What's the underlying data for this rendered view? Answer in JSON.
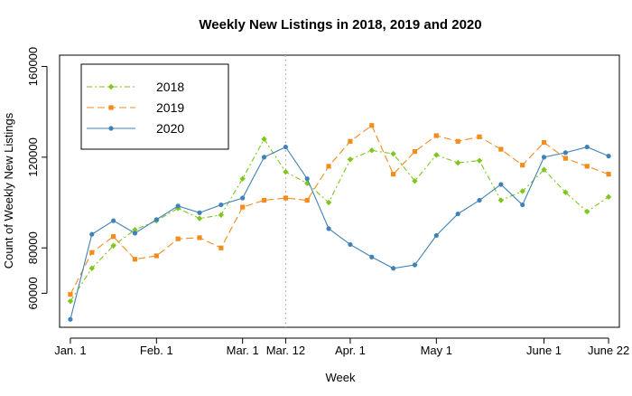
{
  "chart_data": {
    "type": "line",
    "title": "Weekly New Listings in 2018, 2019 and 2020",
    "xlabel": "Week",
    "ylabel": "Count of Weekly New Listings",
    "ylim": [
      45000,
      165000
    ],
    "yticks": [
      60000,
      80000,
      120000,
      160000
    ],
    "xlim": [
      0.5,
      26.5
    ],
    "xticks": [
      {
        "x": 1,
        "label": "Jan. 1"
      },
      {
        "x": 5,
        "label": "Feb. 1"
      },
      {
        "x": 9,
        "label": "Mar. 1"
      },
      {
        "x": 11,
        "label": "Mar. 12"
      },
      {
        "x": 14,
        "label": "Apr. 1"
      },
      {
        "x": 18,
        "label": "May 1"
      },
      {
        "x": 23,
        "label": "June 1"
      },
      {
        "x": 26,
        "label": "June 22"
      }
    ],
    "vline": {
      "x": 11,
      "style": "dotted",
      "color": "#b0b0b0"
    },
    "legend_position": "top-left",
    "x": [
      1,
      2,
      3,
      4,
      5,
      6,
      7,
      8,
      9,
      10,
      11,
      12,
      13,
      14,
      15,
      16,
      17,
      18,
      19,
      20,
      21,
      22,
      23,
      24,
      25,
      26
    ],
    "series": [
      {
        "name": "2018",
        "color": "#7fc61e",
        "dash": "6,3,2,3",
        "marker": "diamond",
        "values": [
          56500,
          71000,
          81000,
          88000,
          92000,
          97500,
          93000,
          94500,
          110500,
          128000,
          113500,
          108500,
          100000,
          119000,
          123000,
          121500,
          109500,
          121000,
          117500,
          118500,
          101000,
          105000,
          114500,
          104500,
          96000,
          102500
        ]
      },
      {
        "name": "2019",
        "color": "#f28c1c",
        "dash": "8,4",
        "marker": "square",
        "values": [
          59500,
          78000,
          85000,
          75000,
          76500,
          84000,
          84500,
          80000,
          98000,
          101000,
          102000,
          101000,
          116000,
          127000,
          134000,
          112500,
          122500,
          129500,
          127000,
          129000,
          123500,
          116500,
          126500,
          119500,
          116000,
          112500
        ]
      },
      {
        "name": "2020",
        "color": "#3f82b8",
        "dash": "",
        "marker": "circle",
        "values": [
          48500,
          86000,
          92000,
          86500,
          92500,
          98500,
          95500,
          99000,
          102000,
          120000,
          124500,
          110500,
          88500,
          81500,
          76000,
          71000,
          72500,
          85500,
          95000,
          101000,
          108000,
          99000,
          120000,
          122000,
          124500,
          120500
        ]
      }
    ]
  }
}
